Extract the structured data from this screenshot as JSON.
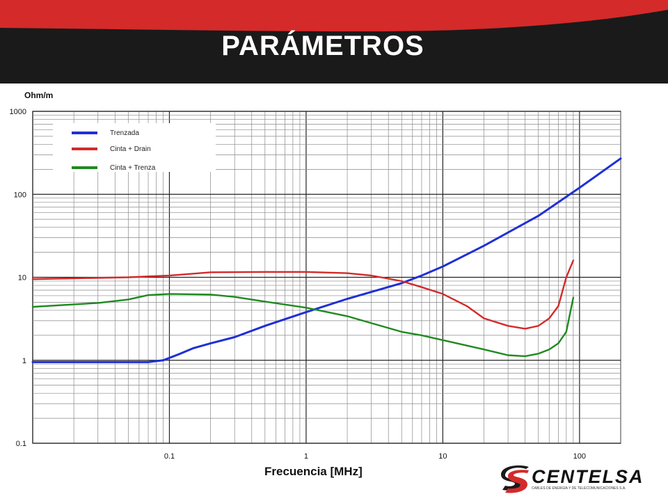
{
  "header": {
    "title": "PARÁMETROS"
  },
  "brand": {
    "name": "CENTELSA",
    "tagline": "CABLES DE ENERGÍA Y DE TELECOMUNICACIONES S.A.",
    "red": "#d42a2a",
    "dark": "#1a1a1a"
  },
  "chart_data": {
    "type": "line",
    "title": "",
    "xlabel": "Frecuencia [MHz]",
    "ylabel": "Ohm/m",
    "xscale": "log",
    "yscale": "log",
    "xlim": [
      0.01,
      200
    ],
    "ylim": [
      0.1,
      1000
    ],
    "x_ticks": [
      "0.1",
      "1",
      "10",
      "100"
    ],
    "y_ticks": [
      "0.1",
      "1",
      "10",
      "100",
      "1000"
    ],
    "grid": true,
    "legend_position": "top-left",
    "series": [
      {
        "name": "Trenzada",
        "color": "#1f2fd6",
        "points": [
          [
            0.01,
            0.95
          ],
          [
            0.05,
            0.95
          ],
          [
            0.07,
            0.95
          ],
          [
            0.09,
            1.0
          ],
          [
            0.12,
            1.2
          ],
          [
            0.15,
            1.4
          ],
          [
            0.2,
            1.6
          ],
          [
            0.3,
            1.9
          ],
          [
            0.5,
            2.6
          ],
          [
            1,
            3.8
          ],
          [
            2,
            5.5
          ],
          [
            5,
            8.5
          ],
          [
            7,
            10.5
          ],
          [
            10,
            13.5
          ],
          [
            20,
            24
          ],
          [
            50,
            55
          ],
          [
            100,
            120
          ],
          [
            200,
            270
          ]
        ]
      },
      {
        "name": "Cinta + Drain",
        "color": "#d42a2a",
        "points": [
          [
            0.01,
            9.5
          ],
          [
            0.05,
            10
          ],
          [
            0.1,
            10.5
          ],
          [
            0.2,
            11.5
          ],
          [
            0.5,
            11.6
          ],
          [
            1,
            11.6
          ],
          [
            2,
            11.2
          ],
          [
            3,
            10.5
          ],
          [
            5,
            9.0
          ],
          [
            7,
            7.6
          ],
          [
            10,
            6.3
          ],
          [
            15,
            4.5
          ],
          [
            20,
            3.2
          ],
          [
            30,
            2.6
          ],
          [
            40,
            2.4
          ],
          [
            50,
            2.6
          ],
          [
            60,
            3.2
          ],
          [
            70,
            4.5
          ],
          [
            80,
            10
          ],
          [
            90,
            16
          ]
        ]
      },
      {
        "name": "Cinta + Trenza",
        "color": "#1e8a1e",
        "points": [
          [
            0.01,
            4.4
          ],
          [
            0.03,
            4.9
          ],
          [
            0.05,
            5.4
          ],
          [
            0.07,
            6.1
          ],
          [
            0.1,
            6.3
          ],
          [
            0.2,
            6.2
          ],
          [
            0.3,
            5.8
          ],
          [
            0.5,
            5.1
          ],
          [
            1,
            4.3
          ],
          [
            2,
            3.4
          ],
          [
            3,
            2.8
          ],
          [
            5,
            2.2
          ],
          [
            7,
            2.0
          ],
          [
            10,
            1.75
          ],
          [
            20,
            1.35
          ],
          [
            30,
            1.15
          ],
          [
            40,
            1.12
          ],
          [
            50,
            1.2
          ],
          [
            60,
            1.35
          ],
          [
            70,
            1.6
          ],
          [
            80,
            2.2
          ],
          [
            90,
            5.7
          ]
        ]
      }
    ]
  }
}
